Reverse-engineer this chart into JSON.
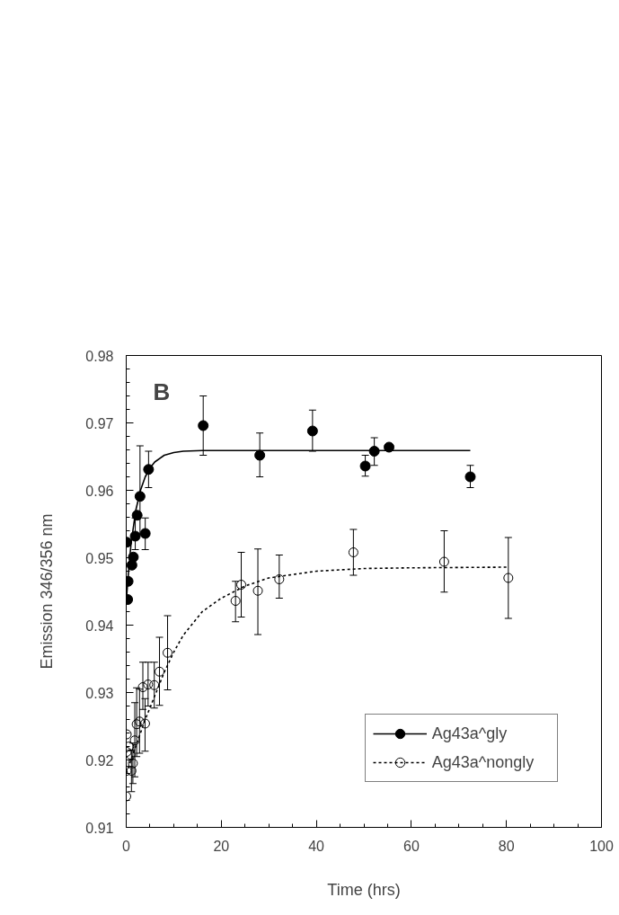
{
  "chart_data": {
    "type": "scatter",
    "xlabel": "Time (hrs)",
    "ylabel": "Emission 346/356 nm",
    "annotations": [
      "B"
    ],
    "xlim": [
      0,
      100
    ],
    "xticks": [
      0,
      20,
      40,
      60,
      80,
      100
    ],
    "ylim": [
      0.91,
      0.98
    ],
    "yticks": [
      0.91,
      0.92,
      0.93,
      0.94,
      0.95,
      0.96,
      0.97,
      0.98
    ],
    "grid": false,
    "legend": "bottom right",
    "series": [
      {
        "name": "Ag43a^gly",
        "marker": "circle",
        "color": "#000000",
        "x": [
          0.1,
          0.3,
          0.4,
          1.2,
          1.5,
          1.9,
          2.3,
          2.9,
          4.0,
          4.7,
          16.2,
          28.1,
          39.2,
          50.3,
          52.2,
          55.3,
          72.4
        ],
        "values": [
          0.9523,
          0.9438,
          0.9465,
          0.9489,
          0.9501,
          0.9532,
          0.9563,
          0.9591,
          0.9536,
          0.9631,
          0.9696,
          0.9652,
          0.9688,
          0.9636,
          0.9658,
          0.9664,
          0.962
        ],
        "errors": [
          null,
          null,
          null,
          null,
          null,
          [
            0.9512,
            0.9559
          ],
          null,
          [
            0.9535,
            0.9666
          ],
          [
            0.9512,
            0.9559
          ],
          [
            0.9604,
            0.9658
          ],
          [
            0.9652,
            0.974
          ],
          [
            0.962,
            0.9685
          ],
          [
            0.9658,
            0.9719
          ],
          [
            0.9621,
            0.9652
          ],
          [
            0.9637,
            0.9678
          ],
          null,
          [
            0.9604,
            0.9637
          ]
        ]
      },
      {
        "type": "line",
        "line_style": "solid",
        "color": "#000000",
        "x": [
          0,
          0.5,
          1,
          2,
          3,
          4,
          5,
          6,
          8,
          10,
          12,
          16,
          20,
          30,
          50,
          72.4
        ],
        "values": [
          0.9435,
          0.948,
          0.952,
          0.957,
          0.96,
          0.962,
          0.9633,
          0.9642,
          0.9652,
          0.9656,
          0.9658,
          0.9659,
          0.9659,
          0.9659,
          0.9659,
          0.9659
        ]
      },
      {
        "name": "Ag43a^nongly",
        "marker": "circle",
        "color": "#000000",
        "x": [
          0.0,
          0.1,
          0.1,
          0.1,
          0.6,
          0.9,
          1.1,
          1.4,
          1.8,
          2.2,
          2.8,
          3.96,
          3.5,
          4.6,
          5.9,
          7.0,
          8.7,
          23.0,
          24.2,
          27.7,
          32.2,
          47.8,
          66.9,
          80.4
        ],
        "values": [
          0.9146,
          0.9184,
          0.9212,
          0.9238,
          0.922,
          0.9208,
          0.9184,
          0.9195,
          0.9229,
          0.9253,
          0.9257,
          0.9254,
          0.9308,
          0.9312,
          0.9311,
          0.9331,
          0.9359,
          0.9436,
          0.946,
          0.9451,
          0.9468,
          0.9508,
          0.9494,
          0.947
        ],
        "errors": [
          null,
          null,
          null,
          null,
          null,
          null,
          [
            0.9153,
            0.9215
          ],
          [
            0.9165,
            0.9225
          ],
          [
            0.9175,
            0.9285
          ],
          [
            0.9205,
            0.9307
          ],
          [
            0.921,
            0.9305
          ],
          [
            0.9213,
            0.9291
          ],
          [
            0.9275,
            0.9345
          ],
          [
            0.928,
            0.9345
          ],
          [
            0.9277,
            0.9345
          ],
          [
            0.9281,
            0.9382
          ],
          [
            0.9304,
            0.9414
          ],
          [
            0.9405,
            0.9465
          ],
          [
            0.9412,
            0.9508
          ],
          [
            0.9386,
            0.9513
          ],
          [
            0.944,
            0.9504
          ],
          [
            0.9474,
            0.9542
          ],
          [
            0.9449,
            0.954
          ],
          [
            0.941,
            0.953
          ]
        ]
      },
      {
        "type": "line",
        "line_style": "dotted",
        "color": "#000000",
        "x": [
          0,
          2,
          4,
          6,
          8,
          10,
          12,
          16,
          20,
          25,
          30,
          40,
          50,
          60,
          80
        ],
        "values": [
          0.918,
          0.922,
          0.926,
          0.9295,
          0.933,
          0.936,
          0.9385,
          0.942,
          0.944,
          0.9458,
          0.947,
          0.948,
          0.9484,
          0.9485,
          0.9486
        ]
      }
    ]
  }
}
